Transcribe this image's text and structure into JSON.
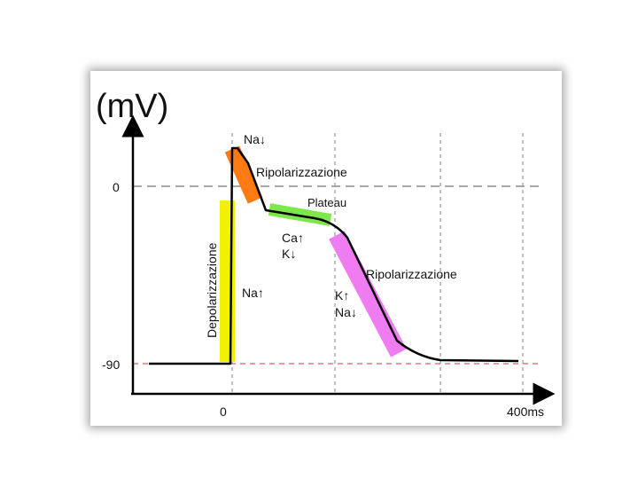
{
  "unit_label": "(mV)",
  "tick_labels": {
    "zero_mv": "0",
    "minus90_mv": "-90",
    "zero_ms": "0",
    "end_ms": "400ms"
  },
  "phase_labels": {
    "na_down_top": "Na↓",
    "ripolarizzazione_early": "Ripolarizzazione",
    "plateau": "Plateau",
    "ca_up": "Ca↑",
    "k_down": "K↓",
    "depolarizzazione": "Depolarizzazione",
    "na_up": "Na↑",
    "ripolarizzazione_late": "Ripolarizzazione",
    "k_up": "K↑",
    "na_down_late": "Na↓"
  },
  "colors": {
    "depolarization": "#f2f200",
    "early_repolarization": "#ff7a12",
    "plateau": "#7ee84a",
    "late_repolarization": "#f07cf2",
    "curve": "#000000",
    "zero_line": "#8c8c8c",
    "rest_line": "#e07a7a"
  }
}
